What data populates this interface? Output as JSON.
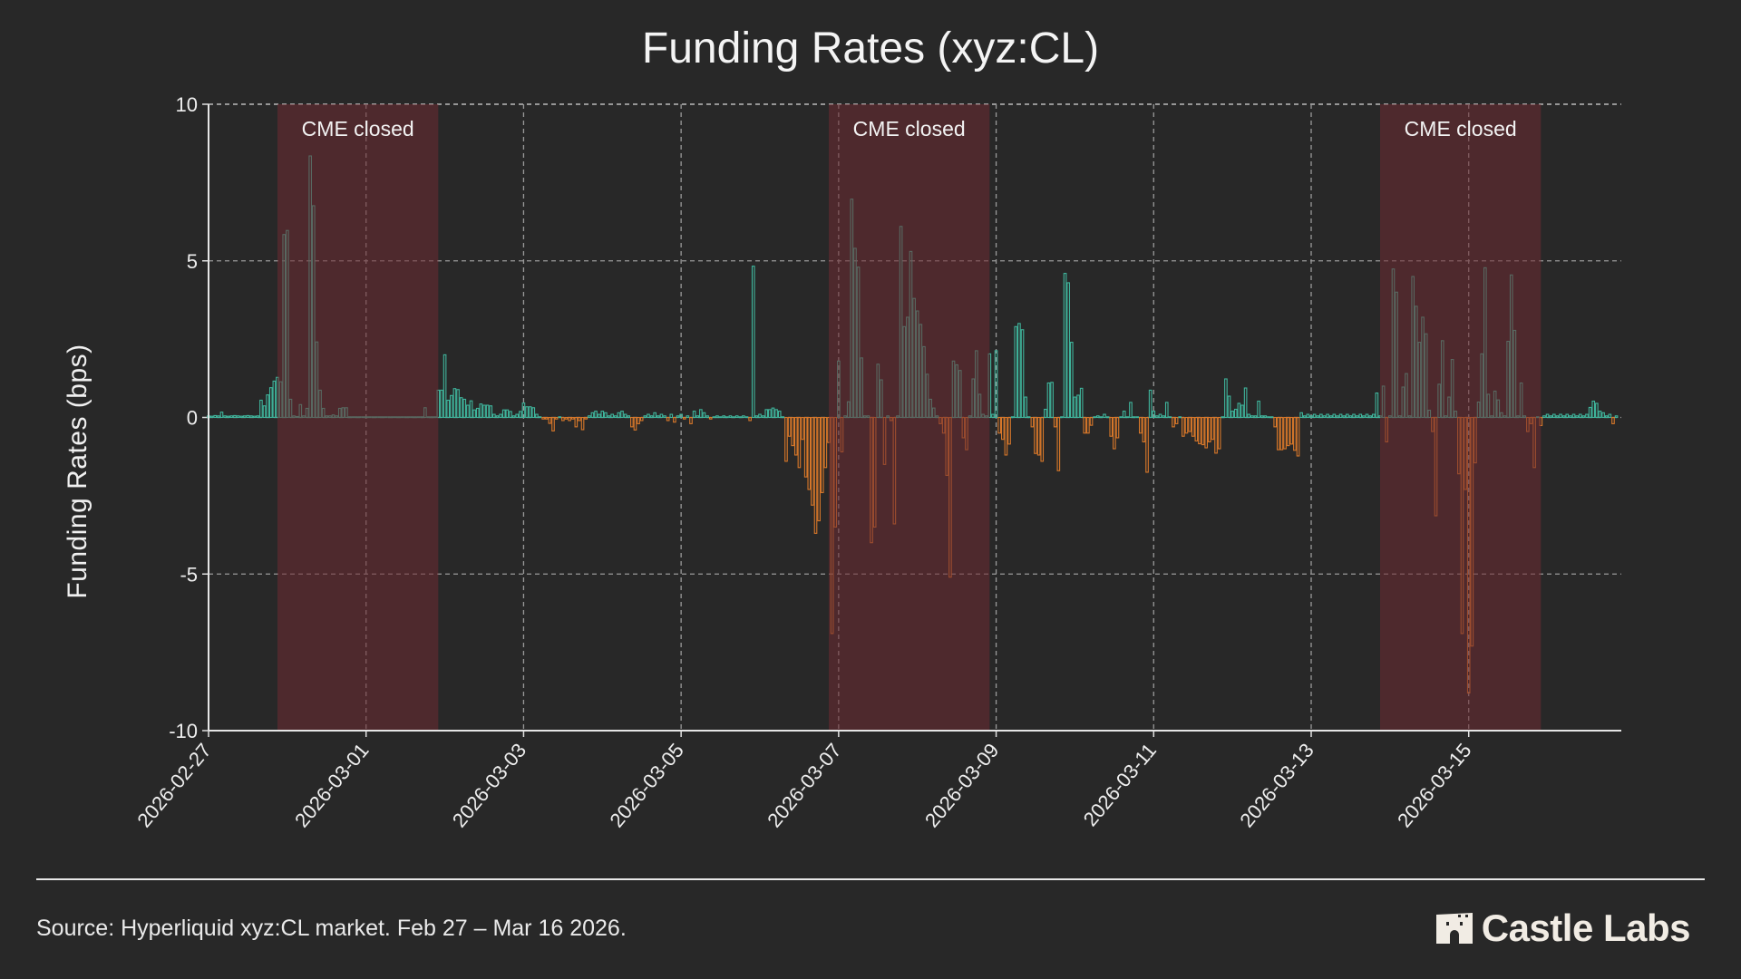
{
  "title": "Funding Rates (xyz:CL)",
  "source": "Source: Hyperliquid xyz:CL market. Feb 27 – Mar 16 2026.",
  "logo": "Castle Labs",
  "colors": {
    "background": "#282828",
    "positive": "#3fb59c",
    "negative": "#d8782a",
    "shade": "#6e2a32",
    "grid": "#9a9a9a"
  },
  "chart_data": {
    "type": "bar",
    "title": "Funding Rates (xyz:CL)",
    "xlabel": "",
    "ylabel": "Funding Rates (bps)",
    "ylim": [
      -10,
      10
    ],
    "xlim": [
      "2026-02-27T00:00",
      "2026-03-16T22:30"
    ],
    "yticks": [
      "10",
      "5",
      "0",
      "-5",
      "-10"
    ],
    "ytick_values": [
      10,
      5,
      0,
      -5,
      -10
    ],
    "xticks": [
      "2026-02-27",
      "2026-03-01",
      "2026-03-03",
      "2026-03-05",
      "2026-03-07",
      "2026-03-09",
      "2026-03-11",
      "2026-03-13",
      "2026-03-15"
    ],
    "grid": true,
    "start": "2026-02-27T00:00",
    "frequency": "hourly",
    "shaded_regions": [
      {
        "label": "CME closed",
        "start": "2026-02-27T21:00",
        "end": "2026-03-01T22:00"
      },
      {
        "label": "CME closed",
        "start": "2026-03-06T21:00",
        "end": "2026-03-08T22:00"
      },
      {
        "label": "CME closed",
        "start": "2026-03-13T21:00",
        "end": "2026-03-15T22:00"
      }
    ],
    "values": [
      0.05,
      0.04,
      0.06,
      0.05,
      0.17,
      0.05,
      0.04,
      0.05,
      0.06,
      0.05,
      0.04,
      0.05,
      0.06,
      0.05,
      0.04,
      0.05,
      0.55,
      0.37,
      0.72,
      0.95,
      1.16,
      1.28,
      1.14,
      5.84,
      5.97,
      0.58,
      0.05,
      0.03,
      0.41,
      0.05,
      0.29,
      8.35,
      6.76,
      2.41,
      0.87,
      0.29,
      0.05,
      0.05,
      0.08,
      0.05,
      0.29,
      0.31,
      0.31,
      0.02,
      0.02,
      0.02,
      0.02,
      0.02,
      0.02,
      0.02,
      0.02,
      0.02,
      0.02,
      0.02,
      0.02,
      0.02,
      0.02,
      0.02,
      0.02,
      0.02,
      0.02,
      0.02,
      0.02,
      0.02,
      0.02,
      0.02,
      0.31,
      0.02,
      0.02,
      0.02,
      0.87,
      0.87,
      2.0,
      0.55,
      0.7,
      0.92,
      0.89,
      0.63,
      0.58,
      0.39,
      0.53,
      0.24,
      0.29,
      0.43,
      0.39,
      0.39,
      0.37,
      0.1,
      0.05,
      0.1,
      0.24,
      0.24,
      0.19,
      0.05,
      0.1,
      0.19,
      0.46,
      0.34,
      0.34,
      0.31,
      0.1,
      0.02,
      -0.05,
      -0.05,
      -0.19,
      -0.43,
      -0.05,
      0.02,
      -0.1,
      -0.05,
      -0.1,
      -0.05,
      -0.3,
      -0.1,
      -0.39,
      -0.05,
      0.05,
      0.15,
      0.2,
      0.1,
      0.2,
      0.15,
      0.05,
      0.1,
      0.05,
      0.15,
      0.2,
      0.1,
      0.05,
      -0.3,
      -0.4,
      -0.2,
      -0.1,
      0.05,
      0.1,
      0.05,
      0.15,
      0.05,
      0.1,
      0.05,
      -0.1,
      0.1,
      -0.15,
      0.05,
      0.1,
      -0.05,
      0.05,
      -0.2,
      0.2,
      0.05,
      0.25,
      0.15,
      0.05,
      -0.05,
      0.02,
      0.05,
      0.02,
      0.05,
      0.02,
      0.05,
      0.02,
      0.05,
      0.02,
      0.05,
      0.02,
      -0.1,
      4.83,
      0.05,
      0.1,
      0.05,
      0.25,
      0.25,
      0.3,
      0.25,
      0.2,
      0.02,
      -1.4,
      -0.6,
      -0.9,
      -1.2,
      -1.6,
      -0.7,
      -1.9,
      -2.3,
      -2.8,
      -3.7,
      -3.3,
      -2.4,
      -1.6,
      -0.8,
      -6.9,
      -3.5,
      1.8,
      -1.1,
      0.05,
      0.5,
      6.97,
      5.4,
      4.8,
      1.9,
      0.05,
      0.05,
      -4.0,
      -3.5,
      1.7,
      1.2,
      -1.5,
      0.05,
      -0.1,
      -3.4,
      0.05,
      6.1,
      2.9,
      3.2,
      5.3,
      3.8,
      3.4,
      2.97,
      2.26,
      1.38,
      0.58,
      0.3,
      0.05,
      -0.2,
      -0.5,
      -1.85,
      -5.1,
      1.8,
      1.68,
      1.5,
      -0.65,
      -1.03,
      0.05,
      1.23,
      2.13,
      0.74,
      0.1,
      0.05,
      2.03,
      0.1,
      2.13,
      -0.5,
      -0.7,
      -1.2,
      -0.85,
      0.02,
      2.9,
      3.0,
      2.8,
      0.65,
      0.02,
      -0.3,
      -1.15,
      -1.2,
      -1.4,
      0.26,
      1.1,
      1.12,
      -0.3,
      -1.7,
      0.02,
      4.6,
      4.3,
      2.4,
      0.65,
      0.71,
      0.93,
      -0.5,
      -0.5,
      -0.25,
      0.02,
      0.05,
      0.02,
      0.1,
      0.02,
      -0.6,
      -1.0,
      -0.65,
      0.02,
      0.2,
      0.02,
      0.48,
      0.02,
      0.02,
      -0.5,
      -0.78,
      -1.75,
      0.87,
      0.2,
      0.05,
      0.1,
      0.05,
      0.48,
      0.02,
      -0.3,
      -0.2,
      0.02,
      -0.6,
      -0.5,
      -0.45,
      -0.6,
      -0.75,
      -0.84,
      -0.87,
      -0.97,
      -0.78,
      -0.7,
      -1.14,
      -1.0,
      0.02,
      1.23,
      0.68,
      0.2,
      0.26,
      0.45,
      0.39,
      0.94,
      0.1,
      0.05,
      0.05,
      0.52,
      0.05,
      0.05,
      0.02,
      0.02,
      -0.3,
      -1.03,
      -1.03,
      -1.0,
      -0.9,
      -0.85,
      -1.05,
      -1.23,
      0.15,
      0.05,
      0.1,
      0.05,
      0.1,
      0.05,
      0.1,
      0.05,
      0.1,
      0.05,
      0.1,
      0.05,
      0.1,
      0.05,
      0.1,
      0.05,
      0.1,
      0.05,
      0.1,
      0.05,
      0.1,
      0.05,
      0.1,
      0.78,
      0.05,
      1.0,
      -0.78,
      0.05,
      4.74,
      4.0,
      0.05,
      0.97,
      1.4,
      0.05,
      4.5,
      3.55,
      2.4,
      3.2,
      2.67,
      0.23,
      -0.45,
      -3.14,
      1.06,
      2.45,
      0.05,
      0.65,
      1.85,
      0.2,
      -1.8,
      -6.9,
      -2.3,
      -8.8,
      -7.3,
      -1.45,
      0.49,
      2.03,
      4.78,
      0.74,
      0.05,
      0.84,
      0.56,
      0.15,
      0.05,
      2.43,
      4.55,
      2.78,
      0.05,
      1.1,
      0.05,
      -0.45,
      -0.2,
      -1.6,
      0.02,
      -0.26,
      0.05,
      0.1,
      0.05,
      0.1,
      0.05,
      0.1,
      0.05,
      0.1,
      0.05,
      0.1,
      0.05,
      0.1,
      0.05,
      0.1,
      0.32,
      0.52,
      0.45,
      0.2,
      0.15,
      0.05,
      0.1,
      -0.2,
      0.05
    ]
  }
}
